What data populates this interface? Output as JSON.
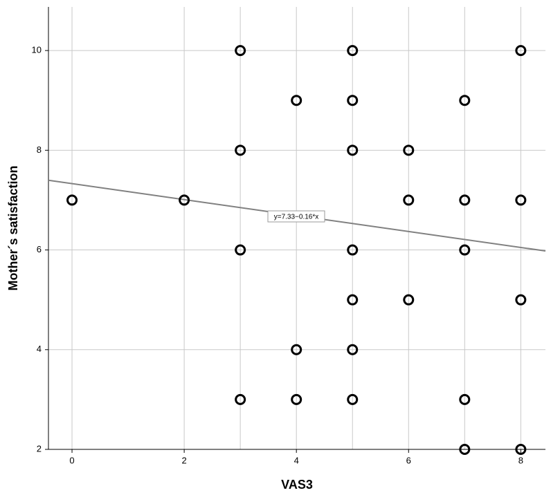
{
  "chart_data": {
    "type": "scatter",
    "x_label": "VAS3",
    "y_label": "Mother´s satisfaction",
    "x": [
      0,
      2,
      3,
      3,
      3,
      3,
      4,
      4,
      4,
      5,
      5,
      5,
      5,
      5,
      5,
      5,
      6,
      6,
      6,
      7,
      7,
      7,
      7,
      7,
      8,
      8,
      8,
      8
    ],
    "values": [
      7,
      7,
      10,
      8,
      6,
      3,
      9,
      4,
      3,
      10,
      9,
      8,
      6,
      5,
      4,
      3,
      8,
      7,
      5,
      9,
      7,
      6,
      3,
      2,
      10,
      7,
      5,
      2
    ],
    "color": "#000000",
    "xlim": [
      -0.42,
      8.44
    ],
    "ylim": [
      2,
      10.875
    ],
    "xticks": [
      0,
      2,
      4,
      6,
      8
    ],
    "yticks": [
      2,
      4,
      6,
      8,
      10
    ],
    "xgrid_minor": [
      3,
      5,
      7
    ],
    "grid": true,
    "fit": {
      "intercept": 7.33,
      "slope": -0.16,
      "label": "y=7.33−0.16*x",
      "color": "#808080"
    }
  }
}
